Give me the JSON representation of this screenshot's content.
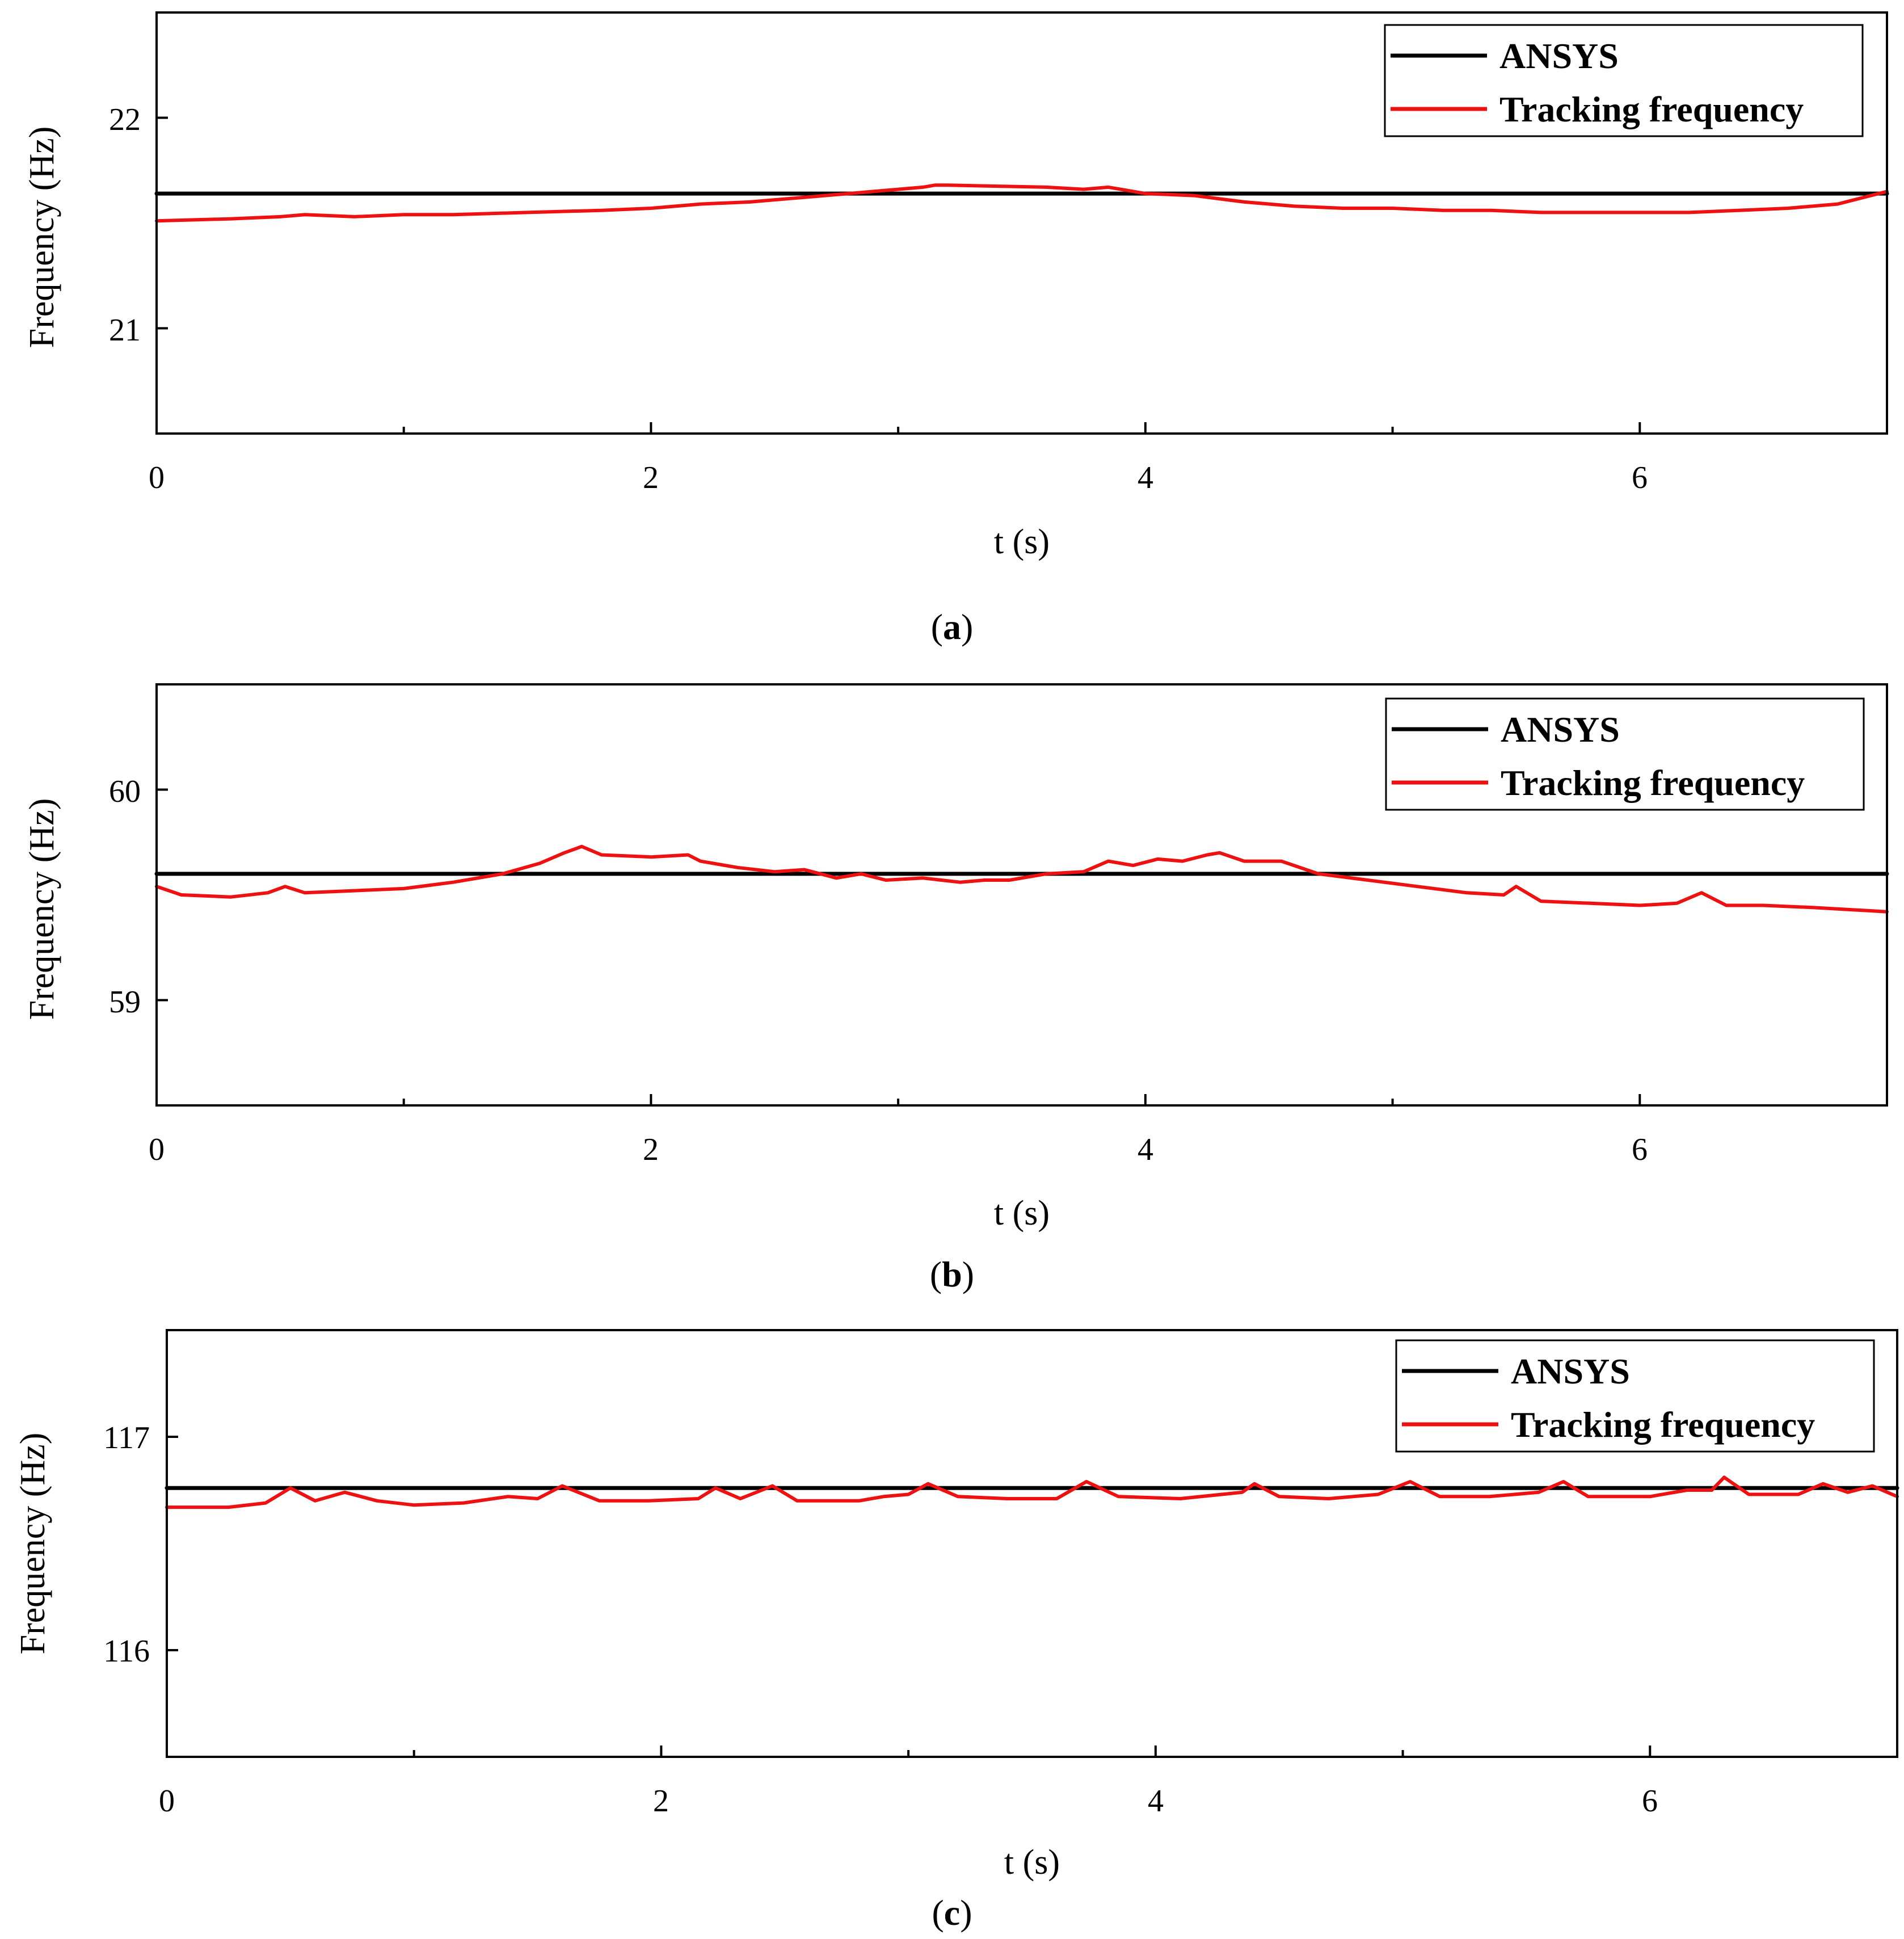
{
  "colors": {
    "ansys": "#000000",
    "tracking": "#ee1111",
    "axis": "#000000",
    "background": "#ffffff"
  },
  "chart_data": [
    {
      "type": "line",
      "panel": "a",
      "caption": {
        "open": "(",
        "letter": "a",
        "close": ")"
      },
      "xlabel": "t (s)",
      "ylabel": "Frequency (Hz)",
      "xlim": [
        0,
        7
      ],
      "ylim": [
        20.5,
        22.5
      ],
      "xticks": [
        0,
        2,
        4,
        6
      ],
      "yticks": [
        21,
        22
      ],
      "legend": {
        "position": "top-right",
        "entries": [
          "ANSYS",
          "Tracking frequency"
        ]
      },
      "series": [
        {
          "name": "ANSYS",
          "color": "#000000",
          "x": [
            0,
            7
          ],
          "y": [
            21.64,
            21.64
          ]
        },
        {
          "name": "Tracking frequency",
          "color": "#ee1111",
          "x": [
            0,
            0.3,
            0.5,
            0.6,
            0.8,
            1.0,
            1.2,
            1.5,
            1.8,
            2.0,
            2.2,
            2.4,
            2.6,
            2.8,
            3.0,
            3.1,
            3.15,
            3.2,
            3.4,
            3.6,
            3.75,
            3.8,
            3.85,
            3.9,
            4.0,
            4.2,
            4.4,
            4.6,
            4.8,
            5.0,
            5.2,
            5.4,
            5.6,
            5.8,
            6.0,
            6.2,
            6.4,
            6.6,
            6.8,
            7.0
          ],
          "y": [
            21.51,
            21.52,
            21.53,
            21.54,
            21.53,
            21.54,
            21.54,
            21.55,
            21.56,
            21.57,
            21.59,
            21.6,
            21.62,
            21.64,
            21.66,
            21.67,
            21.68,
            21.68,
            21.675,
            21.67,
            21.66,
            21.665,
            21.67,
            21.66,
            21.64,
            21.63,
            21.6,
            21.58,
            21.57,
            21.57,
            21.56,
            21.56,
            21.55,
            21.55,
            21.55,
            21.55,
            21.56,
            21.57,
            21.59,
            21.65
          ]
        }
      ]
    },
    {
      "type": "line",
      "panel": "b",
      "caption": {
        "open": "(",
        "letter": "b",
        "close": ")"
      },
      "xlabel": "t (s)",
      "ylabel": "Frequency (Hz)",
      "xlim": [
        0,
        7
      ],
      "ylim": [
        58.5,
        60.5
      ],
      "xticks": [
        0,
        2,
        4,
        6
      ],
      "yticks": [
        59,
        60
      ],
      "legend": {
        "position": "top-right",
        "entries": [
          "ANSYS",
          "Tracking frequency"
        ]
      },
      "series": [
        {
          "name": "ANSYS",
          "color": "#000000",
          "x": [
            0,
            7
          ],
          "y": [
            59.6,
            59.6
          ]
        },
        {
          "name": "Tracking frequency",
          "color": "#ee1111",
          "x": [
            0,
            0.1,
            0.3,
            0.45,
            0.52,
            0.6,
            0.8,
            1.0,
            1.2,
            1.4,
            1.55,
            1.65,
            1.72,
            1.8,
            2.0,
            2.15,
            2.2,
            2.35,
            2.5,
            2.62,
            2.75,
            2.85,
            2.95,
            3.1,
            3.25,
            3.35,
            3.45,
            3.6,
            3.75,
            3.85,
            3.95,
            4.05,
            4.15,
            4.25,
            4.3,
            4.4,
            4.55,
            4.7,
            4.9,
            5.1,
            5.3,
            5.45,
            5.5,
            5.6,
            5.8,
            6.0,
            6.15,
            6.25,
            6.35,
            6.5,
            6.7,
            6.85,
            7.0
          ],
          "y": [
            59.54,
            59.5,
            59.49,
            59.51,
            59.54,
            59.51,
            59.52,
            59.53,
            59.56,
            59.6,
            59.65,
            59.7,
            59.73,
            59.69,
            59.68,
            59.69,
            59.66,
            59.63,
            59.61,
            59.62,
            59.58,
            59.6,
            59.57,
            59.58,
            59.56,
            59.57,
            59.57,
            59.6,
            59.61,
            59.66,
            59.64,
            59.67,
            59.66,
            59.69,
            59.7,
            59.66,
            59.66,
            59.6,
            59.57,
            59.54,
            59.51,
            59.5,
            59.54,
            59.47,
            59.46,
            59.45,
            59.46,
            59.51,
            59.45,
            59.45,
            59.44,
            59.43,
            59.42
          ]
        }
      ]
    },
    {
      "type": "line",
      "panel": "c",
      "caption": {
        "open": "(",
        "letter": "c",
        "close": ")"
      },
      "xlabel": "t (s)",
      "ylabel": "Frequency (Hz)",
      "xlim": [
        0,
        7
      ],
      "ylim": [
        115.5,
        117.5
      ],
      "xticks": [
        0,
        2,
        4,
        6
      ],
      "yticks": [
        116,
        117
      ],
      "legend": {
        "position": "top-right",
        "entries": [
          "ANSYS",
          "Tracking frequency"
        ]
      },
      "series": [
        {
          "name": "ANSYS",
          "color": "#000000",
          "x": [
            0,
            7
          ],
          "y": [
            116.76,
            116.76
          ]
        },
        {
          "name": "Tracking frequency",
          "color": "#ee1111",
          "x": [
            0,
            0.25,
            0.4,
            0.5,
            0.6,
            0.72,
            0.85,
            1.0,
            1.2,
            1.38,
            1.5,
            1.6,
            1.75,
            1.95,
            2.15,
            2.22,
            2.32,
            2.45,
            2.55,
            2.8,
            2.9,
            3.0,
            3.08,
            3.2,
            3.4,
            3.6,
            3.72,
            3.85,
            4.1,
            4.35,
            4.4,
            4.5,
            4.7,
            4.9,
            5.03,
            5.15,
            5.35,
            5.55,
            5.65,
            5.75,
            6.0,
            6.15,
            6.25,
            6.3,
            6.4,
            6.6,
            6.7,
            6.8,
            6.9,
            7.0
          ],
          "y": [
            116.67,
            116.67,
            116.69,
            116.76,
            116.7,
            116.74,
            116.7,
            116.68,
            116.69,
            116.72,
            116.71,
            116.77,
            116.7,
            116.7,
            116.71,
            116.76,
            116.71,
            116.77,
            116.7,
            116.7,
            116.72,
            116.73,
            116.78,
            116.72,
            116.71,
            116.71,
            116.79,
            116.72,
            116.71,
            116.74,
            116.78,
            116.72,
            116.71,
            116.73,
            116.79,
            116.72,
            116.72,
            116.74,
            116.79,
            116.72,
            116.72,
            116.75,
            116.75,
            116.81,
            116.73,
            116.73,
            116.78,
            116.74,
            116.77,
            116.72
          ]
        }
      ]
    }
  ]
}
